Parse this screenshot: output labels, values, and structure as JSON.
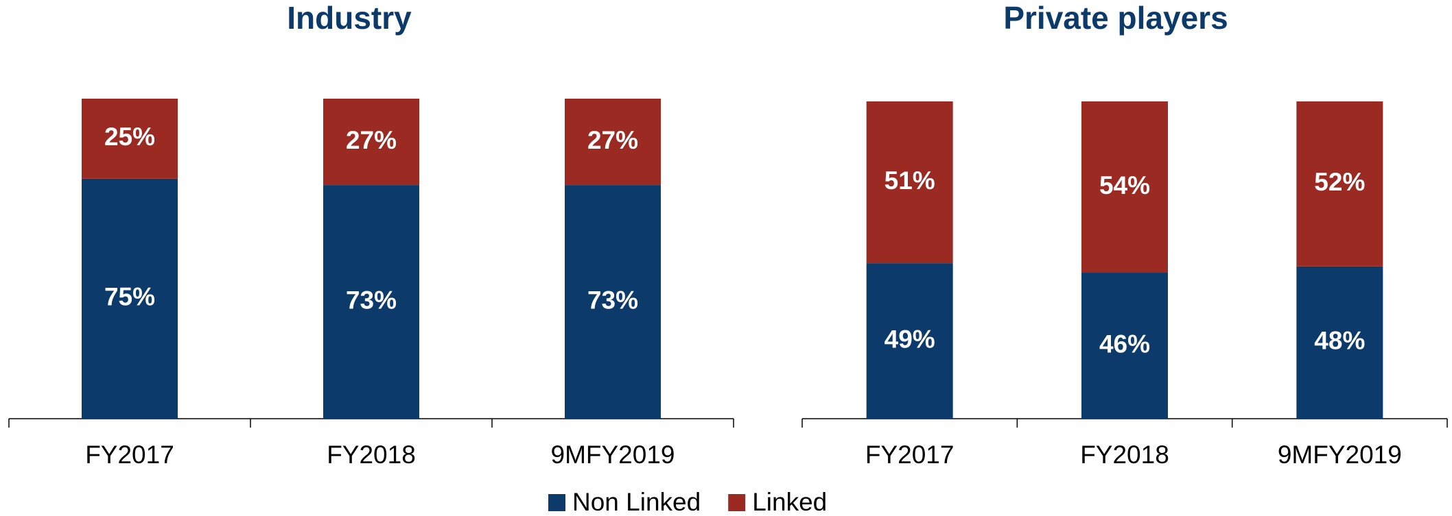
{
  "chart_data": [
    {
      "type": "bar",
      "stacked": true,
      "title": "Industry",
      "categories": [
        "FY2017",
        "FY2018",
        "9MFY2019"
      ],
      "ylim": [
        0,
        100
      ],
      "series": [
        {
          "values": [
            75,
            73,
            73
          ],
          "value_labels": [
            "75%",
            "73%",
            "73%"
          ]
        },
        {
          "values": [
            25,
            27,
            27
          ],
          "value_labels": [
            "25%",
            "27%",
            "27%"
          ]
        }
      ]
    },
    {
      "type": "bar",
      "stacked": true,
      "title": "Private players",
      "categories": [
        "FY2017",
        "FY2018",
        "9MFY2019"
      ],
      "ylim": [
        0,
        100
      ],
      "series": [
        {
          "values": [
            49,
            46,
            48
          ],
          "value_labels": [
            "49%",
            "46%",
            "48%"
          ]
        },
        {
          "values": [
            51,
            54,
            52
          ],
          "value_labels": [
            "51%",
            "54%",
            "52%"
          ]
        }
      ]
    }
  ],
  "legend": [
    {
      "name": "Non Linked",
      "color": "#0b3a6b"
    },
    {
      "name": "Linked",
      "color": "#9b2a22"
    }
  ]
}
